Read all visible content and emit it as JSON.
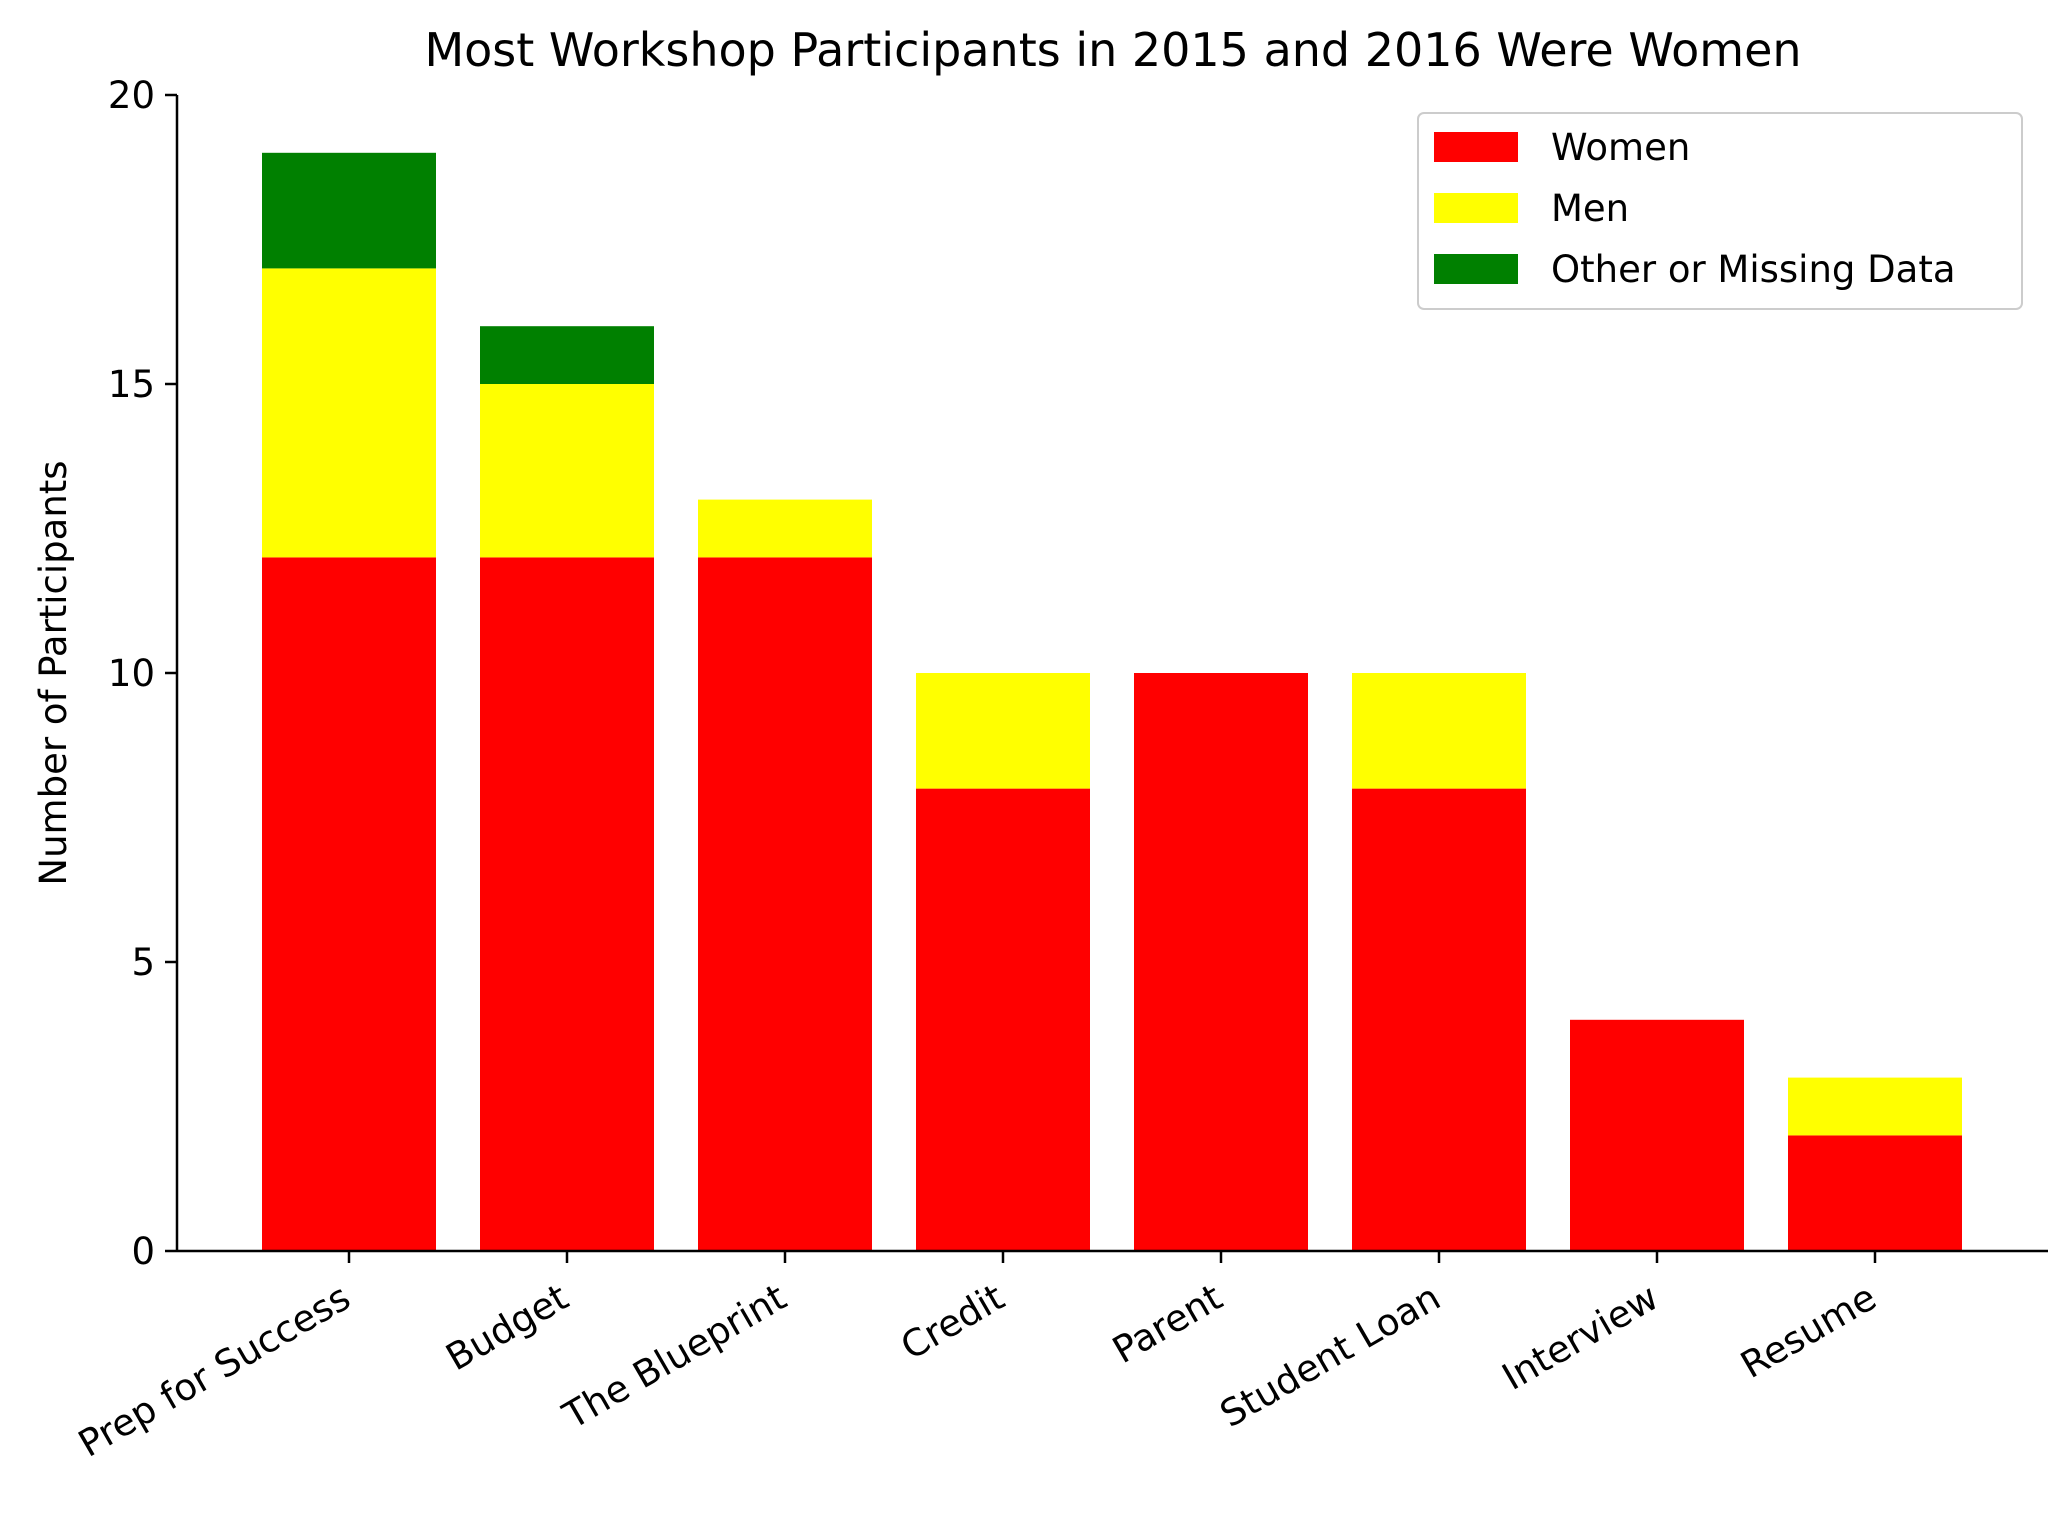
{
  "chart_data": {
    "type": "bar",
    "stacked": true,
    "title": "Most Workshop Participants in 2015 and 2016 Were Women",
    "xlabel": "",
    "ylabel": "Number of Participants",
    "ylim": [
      0,
      20
    ],
    "yticks": [
      "0",
      "5",
      "10",
      "15",
      "20"
    ],
    "categories": [
      "Prep for Success",
      "Budget",
      "The Blueprint",
      "Credit",
      "Parent",
      "Student Loan",
      "Interview",
      "Resume"
    ],
    "series": [
      {
        "name": "Women",
        "color": "#ff0000",
        "values": [
          12,
          12,
          12,
          8,
          10,
          8,
          4,
          2
        ]
      },
      {
        "name": "Men",
        "color": "#ffff00",
        "values": [
          5,
          3,
          1,
          2,
          0,
          2,
          0,
          1
        ]
      },
      {
        "name": "Other or Missing Data",
        "color": "#008000",
        "values": [
          2,
          1,
          0,
          0,
          0,
          0,
          0,
          0
        ]
      }
    ],
    "legend_position": "top-right",
    "grid": false
  }
}
